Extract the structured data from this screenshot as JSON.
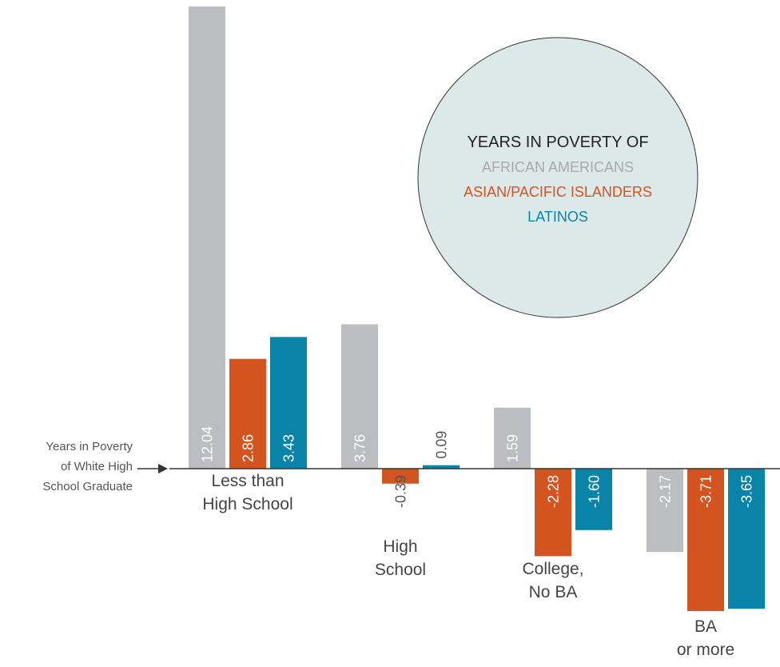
{
  "chart_data": {
    "type": "bar",
    "title": "",
    "xlabel": "",
    "ylabel": "",
    "categories": [
      [
        "Less than",
        "High School"
      ],
      [
        "High",
        "School"
      ],
      [
        "College,",
        "No BA"
      ],
      [
        "BA",
        "or more"
      ]
    ],
    "series": [
      {
        "name": "AFRICAN AMERICANS",
        "color": "#bcbdc0",
        "values": [
          12.04,
          3.76,
          1.59,
          -2.17
        ],
        "labels": [
          "12.04",
          "3.76",
          "1.59",
          "-2.17"
        ]
      },
      {
        "name": "ASIAN/PACIFIC ISLANDERS",
        "color": "#d4541f",
        "values": [
          2.86,
          -0.39,
          -2.28,
          -3.71
        ],
        "labels": [
          "2.86",
          "-0.39",
          "-2.28",
          "-3.71"
        ]
      },
      {
        "name": "LATINOS",
        "color": "#0984a8",
        "values": [
          3.43,
          0.09,
          -1.6,
          -3.65
        ],
        "labels": [
          "3.43",
          "0.09",
          "-1.60",
          "-3.65"
        ]
      }
    ],
    "baseline_value": 0,
    "label_color_on_bar": "#ffffff",
    "label_color_off_bar": "#555555",
    "legend": {
      "title": "YEARS IN POVERTY OF",
      "background": "#dde9e9",
      "placement": "top-right"
    },
    "reference_label": [
      "Years in Poverty",
      "of White High",
      "School Graduate"
    ]
  }
}
